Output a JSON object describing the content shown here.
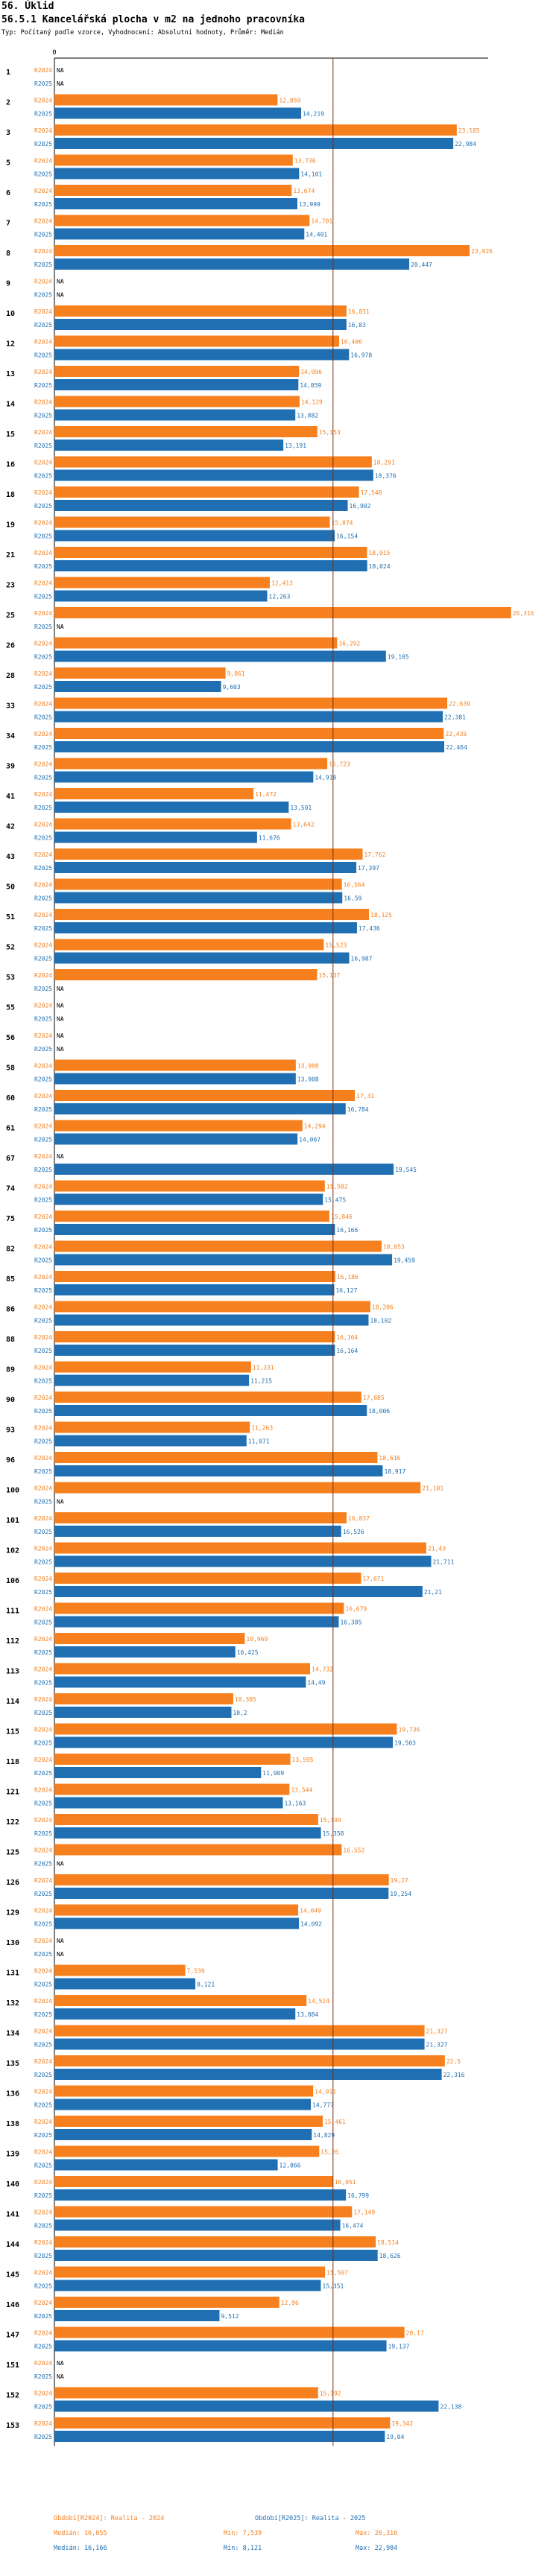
{
  "header": {
    "section": "56. Úklid",
    "title": "56.5.1 Kancelářská plocha v m2 na jednoho pracovníka",
    "subtitle": "Typ: Počítaný podle vzorce, Vyhodnocení: Absolutní hodnoty, Průměr: Medián"
  },
  "colors": {
    "r2024": "#f7801e",
    "r2025": "#1f6fb2",
    "median_line": "#7a2e10",
    "axis": "#000000"
  },
  "chart_data": {
    "type": "bar",
    "orientation": "horizontal",
    "axis_zero_label": "0",
    "x_range": [
      0,
      26.5
    ],
    "categories": [
      "1",
      "2",
      "3",
      "5",
      "6",
      "7",
      "8",
      "9",
      "10",
      "12",
      "13",
      "14",
      "15",
      "16",
      "18",
      "19",
      "21",
      "23",
      "25",
      "26",
      "28",
      "33",
      "34",
      "39",
      "41",
      "42",
      "43",
      "50",
      "51",
      "52",
      "53",
      "55",
      "56",
      "58",
      "60",
      "61",
      "67",
      "74",
      "75",
      "82",
      "85",
      "86",
      "88",
      "89",
      "90",
      "93",
      "96",
      "100",
      "101",
      "102",
      "106",
      "111",
      "112",
      "113",
      "114",
      "115",
      "118",
      "121",
      "122",
      "125",
      "126",
      "129",
      "130",
      "131",
      "132",
      "134",
      "135",
      "136",
      "138",
      "139",
      "140",
      "141",
      "144",
      "145",
      "146",
      "147",
      "151",
      "152",
      "153"
    ],
    "series": [
      {
        "name": "R2024",
        "labels": [
          "R2024",
          "R2024",
          "R2024",
          "R2024",
          "R2024",
          "R2024",
          "R2024",
          "R2024",
          "R2024",
          "R2024",
          "R2024",
          "R2024",
          "R2024",
          "R2024",
          "R2024",
          "R2024",
          "R2024",
          "R2024",
          "R2024",
          "R2024",
          "R2024",
          "R2024",
          "R2024",
          "R2024",
          "R2024",
          "R2024",
          "R2024",
          "R2024",
          "R2024",
          "R2024",
          "R2024",
          "R2024",
          "R2024",
          "R2024",
          "R2024",
          "R2024",
          "R2024",
          "R2024",
          "R2024",
          "R2024",
          "R2024",
          "R2024",
          "R2024",
          "R2024",
          "R2024",
          "R2024",
          "R2024",
          "R2024",
          "R2024",
          "R2024",
          "R2024",
          "R2024",
          "R2024",
          "R2024",
          "R2024",
          "R2024",
          "R2024",
          "R2024",
          "R2024",
          "R2024",
          "R2024",
          "R2024",
          "R2024",
          "R2024",
          "R2024",
          "R2024",
          "R2024",
          "R2024",
          "R2024",
          "R2024",
          "R2024",
          "R2024",
          "R2024",
          "R2024",
          "R2024",
          "R2024",
          "R2024",
          "R2024",
          "R2024"
        ],
        "values": [
          null,
          12.859,
          23.185,
          13.736,
          13.674,
          14.701,
          23.926,
          null,
          16.831,
          16.406,
          14.096,
          14.129,
          15.153,
          18.291,
          17.548,
          15.874,
          18.015,
          12.413,
          26.316,
          16.292,
          9.861,
          22.639,
          22.435,
          15.723,
          11.472,
          13.642,
          17.762,
          16.564,
          18.125,
          15.523,
          15.137,
          null,
          null,
          13.908,
          17.31,
          14.294,
          null,
          15.582,
          15.846,
          18.853,
          16.186,
          18.206,
          16.164,
          11.331,
          17.685,
          11.263,
          18.616,
          21.101,
          16.837,
          21.43,
          17.671,
          16.679,
          10.969,
          14.732,
          10.305,
          19.736,
          13.595,
          13.544,
          15.199,
          16.552,
          19.27,
          14.049,
          null,
          7.539,
          14.524,
          21.327,
          22.5,
          14.911,
          15.461,
          15.26,
          16.051,
          17.149,
          18.514,
          15.597,
          12.96,
          20.17,
          null,
          15.192,
          19.342
        ]
      },
      {
        "name": "R2025",
        "labels": [
          "R2025",
          "R2025",
          "R2025",
          "R2025",
          "R2025",
          "R2025",
          "R2025",
          "R2025",
          "R2025",
          "R2025",
          "R2025",
          "R2025",
          "R2025",
          "R2025",
          "R2025",
          "R2025",
          "R2025",
          "R2025",
          "R2025",
          "R2025",
          "R2025",
          "R2025",
          "R2025",
          "R2025",
          "R2025",
          "R2025",
          "R2025",
          "R2025",
          "R2025",
          "R2025",
          "R2025",
          "R2025",
          "R2025",
          "R2025",
          "R2025",
          "R2025",
          "R2025",
          "R2025",
          "R2025",
          "R2025",
          "R2025",
          "R2025",
          "R2025",
          "R2025",
          "R2025",
          "R2025",
          "R2025",
          "R2025",
          "R2025",
          "R2025",
          "R2025",
          "R2025",
          "R2025",
          "R2025",
          "R2025",
          "R2025",
          "R2025",
          "R2025",
          "R2025",
          "R2025",
          "R2025",
          "R2025",
          "R2025",
          "R2025",
          "R2025",
          "R2025",
          "R2025",
          "R2025",
          "R2025",
          "R2025",
          "R2025",
          "R2025",
          "R2025",
          "R2025",
          "R2025",
          "R2025",
          "R2025",
          "R2025",
          "R2025"
        ],
        "values": [
          null,
          14.219,
          22.984,
          14.101,
          13.999,
          14.401,
          20.447,
          null,
          16.83,
          16.978,
          14.059,
          13.882,
          13.191,
          18.376,
          16.902,
          16.154,
          18.024,
          12.263,
          null,
          19.105,
          9.603,
          22.381,
          22.464,
          14.918,
          13.501,
          11.676,
          17.397,
          16.59,
          17.436,
          16.987,
          null,
          null,
          null,
          13.908,
          16.784,
          14.007,
          19.545,
          15.475,
          16.166,
          19.459,
          16.127,
          18.102,
          16.164,
          11.215,
          18.006,
          11.071,
          18.917,
          null,
          16.526,
          21.711,
          21.21,
          16.385,
          10.425,
          14.49,
          10.2,
          19.503,
          11.909,
          13.163,
          15.358,
          null,
          19.254,
          14.092,
          null,
          8.121,
          13.884,
          21.327,
          22.316,
          14.777,
          14.829,
          12.866,
          16.799,
          16.474,
          18.626,
          15.351,
          9.512,
          19.137,
          null,
          22.138,
          19.04
        ]
      }
    ],
    "value_labels": {
      "R2024": [
        "NA",
        "12,859",
        "23,185",
        "13,736",
        "13,674",
        "14,701",
        "23,926",
        "NA",
        "16,831",
        "16,406",
        "14,096",
        "14,129",
        "15,153",
        "18,291",
        "17,548",
        "15,874",
        "18,015",
        "12,413",
        "26,316",
        "16,292",
        "9,861",
        "22,639",
        "22,435",
        "15,723",
        "11,472",
        "13,642",
        "17,762",
        "16,564",
        "18,125",
        "15,523",
        "15,137",
        "NA",
        "NA",
        "13,908",
        "17,31",
        "14,294",
        "NA",
        "15,582",
        "15,846",
        "18,853",
        "16,186",
        "18,206",
        "16,164",
        "11,331",
        "17,685",
        "11,263",
        "18,616",
        "21,101",
        "16,837",
        "21,43",
        "17,671",
        "16,679",
        "10,969",
        "14,732",
        "10,305",
        "19,736",
        "13,595",
        "13,544",
        "15,199",
        "16,552",
        "19,27",
        "14,049",
        "NA",
        "7,539",
        "14,524",
        "21,327",
        "22,5",
        "14,911",
        "15,461",
        "15,26",
        "16,051",
        "17,149",
        "18,514",
        "15,597",
        "12,96",
        "20,17",
        "NA",
        "15,192",
        "19,342"
      ],
      "R2025": [
        "NA",
        "14,219",
        "22,984",
        "14,101",
        "13,999",
        "14,401",
        "20,447",
        "NA",
        "16,83",
        "16,978",
        "14,059",
        "13,882",
        "13,191",
        "18,376",
        "16,902",
        "16,154",
        "18,024",
        "12,263",
        "NA",
        "19,105",
        "9,603",
        "22,381",
        "22,464",
        "14,918",
        "13,501",
        "11,676",
        "17,397",
        "16,59",
        "17,436",
        "16,987",
        "NA",
        "NA",
        "NA",
        "13,908",
        "16,784",
        "14,007",
        "19,545",
        "15,475",
        "16,166",
        "19,459",
        "16,127",
        "18,102",
        "16,164",
        "11,215",
        "18,006",
        "11,071",
        "18,917",
        "NA",
        "16,526",
        "21,711",
        "21,21",
        "16,385",
        "10,425",
        "14,49",
        "10,2",
        "19,503",
        "11,909",
        "13,163",
        "15,358",
        "NA",
        "19,254",
        "14,092",
        "NA",
        "8,121",
        "13,884",
        "21,327",
        "22,316",
        "14,777",
        "14,829",
        "12,866",
        "16,799",
        "16,474",
        "18,626",
        "15,351",
        "9,512",
        "19,137",
        "NA",
        "22,138",
        "19,04"
      ]
    },
    "median": 16.055,
    "legend": {
      "r2024": {
        "label": "Období[R2024]: Realita - 2024",
        "median": "Medián: 16,055",
        "min": "Min: 7,539",
        "max": "Max: 26,316"
      },
      "r2025": {
        "label": "Období[R2025]: Realita - 2025",
        "median": "Medián: 16,166",
        "min": "Min: 8,121",
        "max": "Max: 22,984"
      }
    }
  }
}
